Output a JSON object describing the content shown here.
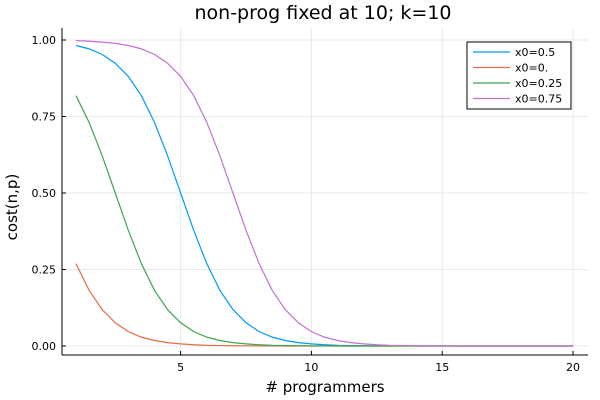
{
  "chart_data": {
    "type": "line",
    "title": "non-prog fixed at 10; k=10",
    "xlabel": "# programmers",
    "ylabel": "cost(n,p)",
    "xlim": [
      1,
      20
    ],
    "ylim": [
      0,
      1
    ],
    "x_ticks": [
      5,
      10,
      15,
      20
    ],
    "x_tick_labels": [
      "5",
      "10",
      "15",
      "20"
    ],
    "y_ticks": [
      0,
      0.25,
      0.5,
      0.75,
      1
    ],
    "y_tick_labels": [
      "0.00",
      "0.25",
      "0.50",
      "0.75",
      "1.00"
    ],
    "grid": true,
    "legend_position": "top-right",
    "x": [
      1,
      1.5,
      2,
      2.5,
      3,
      3.5,
      4,
      4.5,
      5,
      5.5,
      6,
      6.5,
      7,
      7.5,
      8,
      8.5,
      9,
      9.5,
      10,
      10.5,
      11,
      11.5,
      12,
      12.5,
      13,
      13.5,
      14,
      14.5,
      15,
      15.5,
      16,
      16.5,
      17,
      17.5,
      18,
      18.5,
      19,
      19.5,
      20
    ],
    "series": [
      {
        "name": "x0=0.5",
        "color": "#009af9",
        "values": [
          0.982,
          0.971,
          0.953,
          0.924,
          0.881,
          0.818,
          0.731,
          0.622,
          0.5,
          0.378,
          0.269,
          0.182,
          0.119,
          0.076,
          0.047,
          0.029,
          0.018,
          0.011,
          0.007,
          0.004,
          0.002,
          0.0015,
          0.0009,
          0.0006,
          0.0003,
          0.0002,
          0.0001,
          0.0001,
          0.0,
          0.0,
          0.0,
          0.0,
          0.0,
          0.0,
          0.0,
          0.0,
          0.0,
          0.0,
          0.0
        ]
      },
      {
        "name": "x0=0.",
        "color": "#e26f46",
        "values": [
          0.269,
          0.182,
          0.119,
          0.076,
          0.047,
          0.029,
          0.018,
          0.011,
          0.007,
          0.004,
          0.002,
          0.0015,
          0.0009,
          0.0006,
          0.0003,
          0.0002,
          0.0001,
          0.0001,
          0.0,
          0.0,
          0.0,
          0.0,
          0.0,
          0.0,
          0.0,
          0.0,
          0.0,
          0.0,
          0.0,
          0.0,
          0.0,
          0.0,
          0.0,
          0.0,
          0.0,
          0.0,
          0.0,
          0.0,
          0.0
        ]
      },
      {
        "name": "x0=0.25",
        "color": "#3da44d",
        "values": [
          0.818,
          0.731,
          0.622,
          0.5,
          0.378,
          0.269,
          0.182,
          0.119,
          0.076,
          0.047,
          0.029,
          0.018,
          0.011,
          0.007,
          0.004,
          0.002,
          0.0015,
          0.0009,
          0.0006,
          0.0003,
          0.0002,
          0.0001,
          0.0001,
          0.0,
          0.0,
          0.0,
          0.0,
          0.0,
          0.0,
          0.0,
          0.0,
          0.0,
          0.0,
          0.0,
          0.0,
          0.0,
          0.0,
          0.0,
          0.0
        ]
      },
      {
        "name": "x0=0.75",
        "color": "#c271d2",
        "values": [
          0.998,
          0.996,
          0.993,
          0.989,
          0.982,
          0.971,
          0.953,
          0.924,
          0.881,
          0.818,
          0.731,
          0.622,
          0.5,
          0.378,
          0.269,
          0.182,
          0.119,
          0.076,
          0.047,
          0.029,
          0.018,
          0.011,
          0.007,
          0.004,
          0.002,
          0.0015,
          0.0009,
          0.0006,
          0.0003,
          0.0002,
          0.0001,
          0.0001,
          0.0,
          0.0,
          0.0,
          0.0,
          0.0,
          0.0,
          0.0
        ]
      }
    ]
  }
}
